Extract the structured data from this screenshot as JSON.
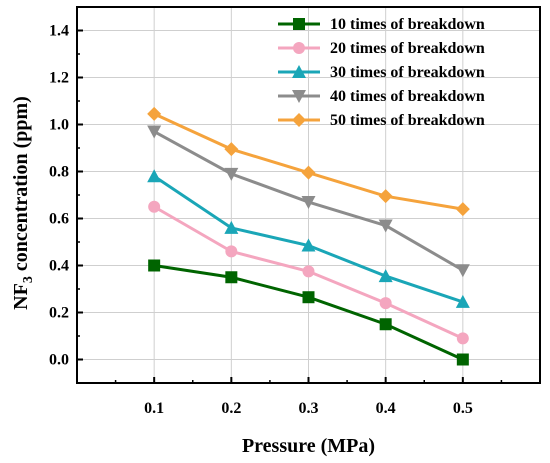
{
  "chart_data": {
    "type": "line",
    "xlabel": "Pressure (MPa)",
    "ylabel_main": "NF",
    "ylabel_sub": "3",
    "ylabel_rest": " concentration (ppm)",
    "x": [
      0.1,
      0.2,
      0.3,
      0.4,
      0.5
    ],
    "x_ticks": [
      "0.1",
      "0.2",
      "0.3",
      "0.4",
      "0.5"
    ],
    "xlim": [
      0.0,
      0.6
    ],
    "y_ticks": [
      "0.0",
      "0.2",
      "0.4",
      "0.6",
      "0.8",
      "1.0",
      "1.2",
      "1.4"
    ],
    "ylim": [
      -0.1,
      1.5
    ],
    "grid": true,
    "legend_position": "top-right",
    "series": [
      {
        "name": "10 times of breakdown",
        "color": "#006400",
        "marker": "square",
        "values": [
          0.4,
          0.35,
          0.265,
          0.15,
          0.0
        ]
      },
      {
        "name": "20 times of breakdown",
        "color": "#f4a6bf",
        "marker": "circle",
        "values": [
          0.65,
          0.46,
          0.375,
          0.24,
          0.09
        ]
      },
      {
        "name": "30 times of breakdown",
        "color": "#1aa6b7",
        "marker": "triangle-up",
        "values": [
          0.78,
          0.56,
          0.485,
          0.355,
          0.245
        ]
      },
      {
        "name": "40 times of breakdown",
        "color": "#8c8c8c",
        "marker": "triangle-down",
        "values": [
          0.97,
          0.79,
          0.67,
          0.57,
          0.38
        ]
      },
      {
        "name": "50 times of breakdown",
        "color": "#f5a33c",
        "marker": "diamond",
        "values": [
          1.045,
          0.895,
          0.795,
          0.695,
          0.64
        ]
      }
    ]
  }
}
